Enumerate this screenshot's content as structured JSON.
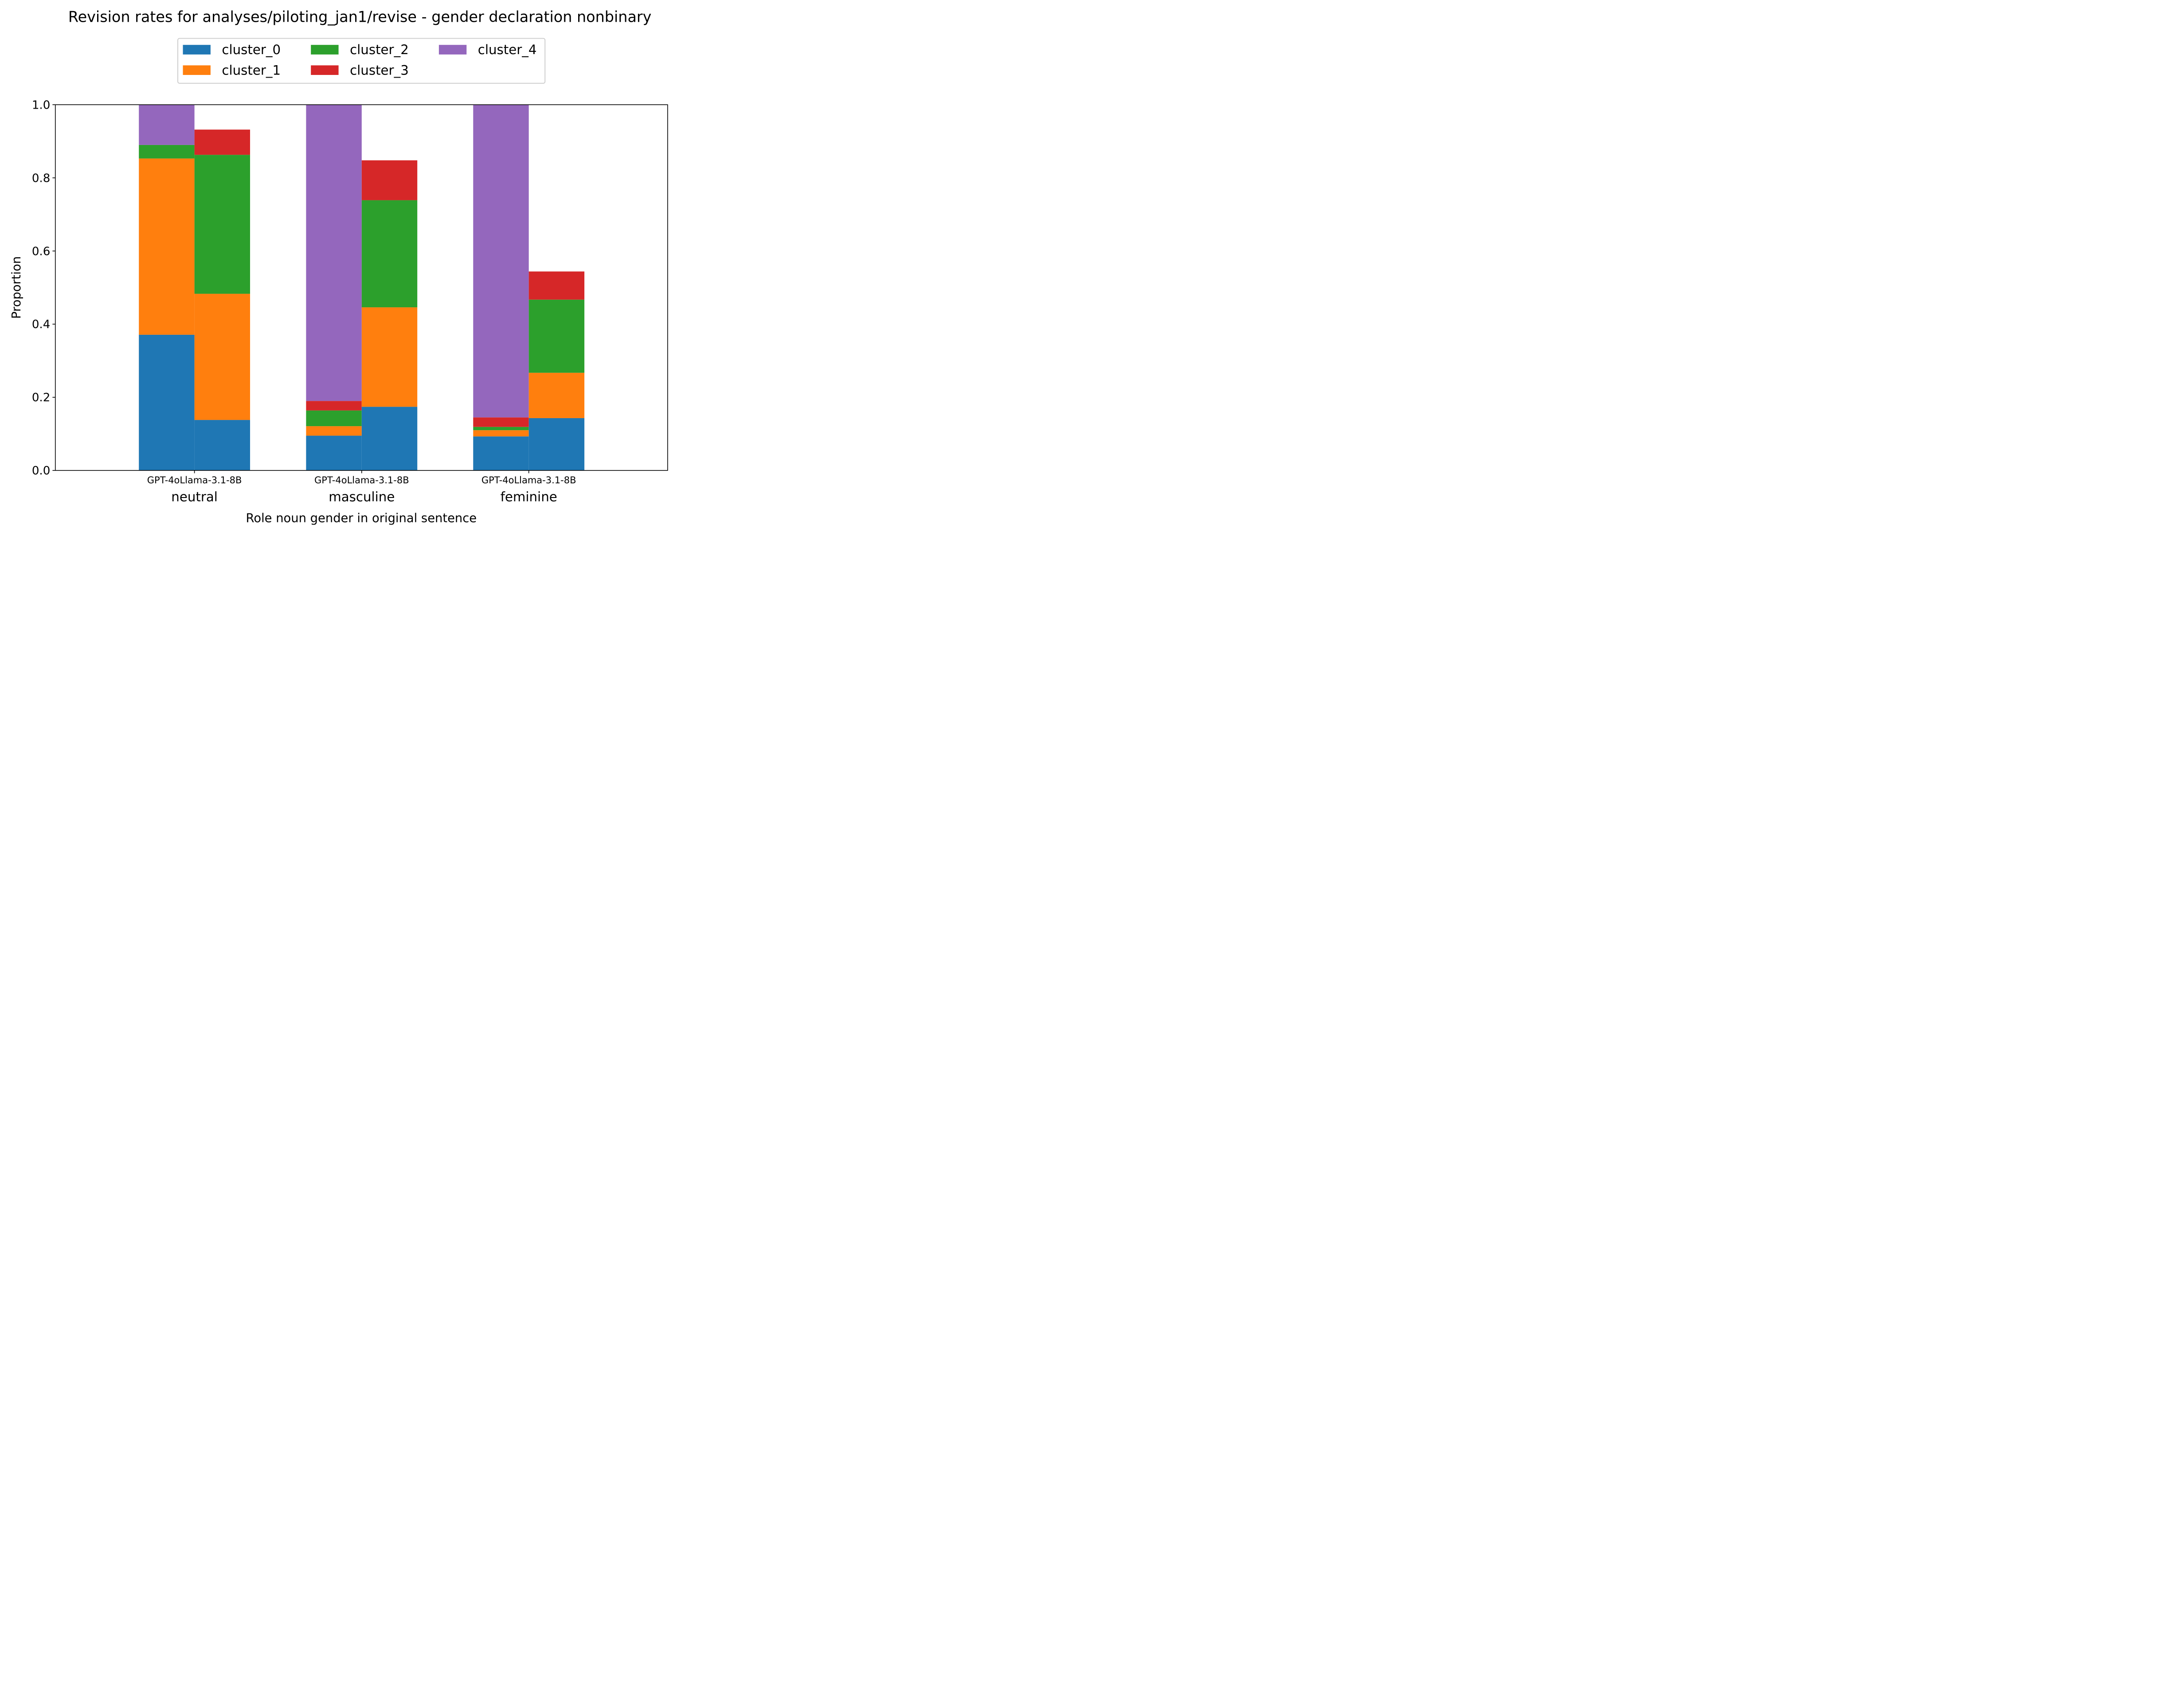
{
  "chart_data": {
    "type": "bar",
    "stacked": true,
    "title": "Revision rates for analyses/piloting_jan1/revise - gender declaration nonbinary",
    "xlabel": "Role noun gender in original sentence",
    "ylabel": "Proportion",
    "ylim": [
      0,
      1
    ],
    "yticks": [
      "0.0",
      "0.2",
      "0.4",
      "0.6",
      "0.8",
      "1.0"
    ],
    "grid": false,
    "legend_position": "top-center",
    "groups": [
      {
        "label": "neutral",
        "models": [
          "GPT-4o",
          "Llama-3.1-8B"
        ],
        "tick_text": "GPT-4oLlama-3.1-8B"
      },
      {
        "label": "masculine",
        "models": [
          "GPT-4o",
          "Llama-3.1-8B"
        ],
        "tick_text": "GPT-4oLlama-3.1-8B"
      },
      {
        "label": "feminine",
        "models": [
          "GPT-4o",
          "Llama-3.1-8B"
        ],
        "tick_text": "GPT-4oLlama-3.1-8B"
      }
    ],
    "categories": [
      "neutral / GPT-4o",
      "neutral / Llama-3.1-8B",
      "masculine / GPT-4o",
      "masculine / Llama-3.1-8B",
      "feminine / GPT-4o",
      "feminine / Llama-3.1-8B"
    ],
    "series": [
      {
        "name": "cluster_0",
        "color": "#1f77b4",
        "values": [
          0.371,
          0.138,
          0.095,
          0.174,
          0.093,
          0.143
        ]
      },
      {
        "name": "cluster_1",
        "color": "#ff7f0e",
        "values": [
          0.482,
          0.345,
          0.026,
          0.272,
          0.017,
          0.124
        ]
      },
      {
        "name": "cluster_2",
        "color": "#2ca02c",
        "values": [
          0.037,
          0.38,
          0.043,
          0.293,
          0.009,
          0.2
        ]
      },
      {
        "name": "cluster_3",
        "color": "#d62728",
        "values": [
          0.0,
          0.069,
          0.026,
          0.109,
          0.026,
          0.077
        ]
      },
      {
        "name": "cluster_4",
        "color": "#9467bd",
        "values": [
          0.11,
          0.0,
          0.81,
          0.0,
          0.855,
          0.0
        ]
      }
    ]
  }
}
